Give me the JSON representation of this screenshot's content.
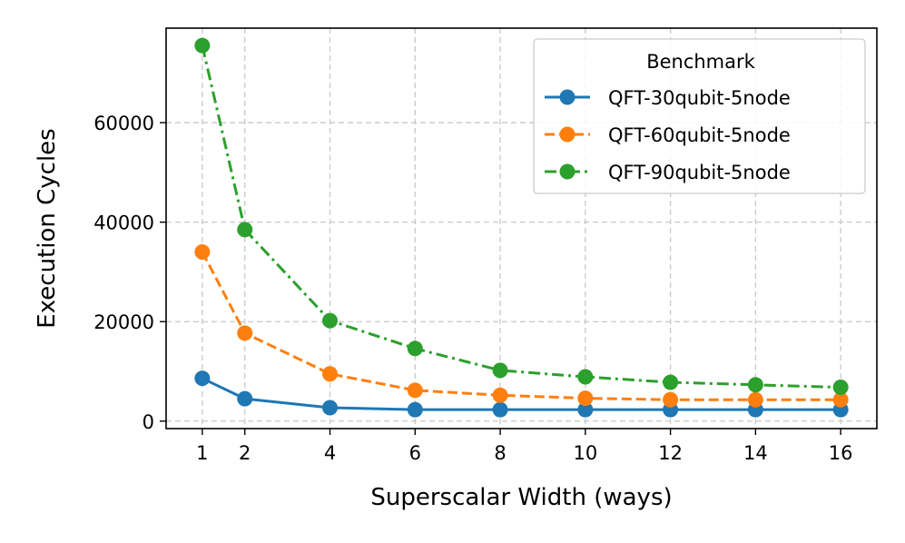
{
  "chart_data": {
    "type": "line",
    "xlabel": "Superscalar Width (ways)",
    "ylabel": "Execution Cycles",
    "x": [
      1,
      2,
      4,
      6,
      8,
      10,
      12,
      14,
      16
    ],
    "xticks": [
      1,
      2,
      4,
      6,
      8,
      10,
      12,
      14,
      16
    ],
    "yticks": [
      0,
      20000,
      40000,
      60000
    ],
    "xlim": [
      0.15,
      16.85
    ],
    "ylim": [
      -1500,
      79000
    ],
    "grid": true,
    "legend": {
      "title": "Benchmark",
      "position": "top-right"
    },
    "series": [
      {
        "name": "QFT-30qubit-5node",
        "color": "#1f77b4",
        "line_style": "solid",
        "values": [
          8600,
          4500,
          2700,
          2300,
          2300,
          2300,
          2300,
          2300,
          2300
        ]
      },
      {
        "name": "QFT-60qubit-5node",
        "color": "#ff7f0e",
        "line_style": "dashed",
        "values": [
          34000,
          17700,
          9500,
          6200,
          5200,
          4600,
          4300,
          4300,
          4300
        ]
      },
      {
        "name": "QFT-90qubit-5node",
        "color": "#2ca02c",
        "line_style": "dash-dot",
        "values": [
          75500,
          38500,
          20200,
          14600,
          10200,
          8900,
          7800,
          7300,
          6800
        ]
      }
    ]
  }
}
